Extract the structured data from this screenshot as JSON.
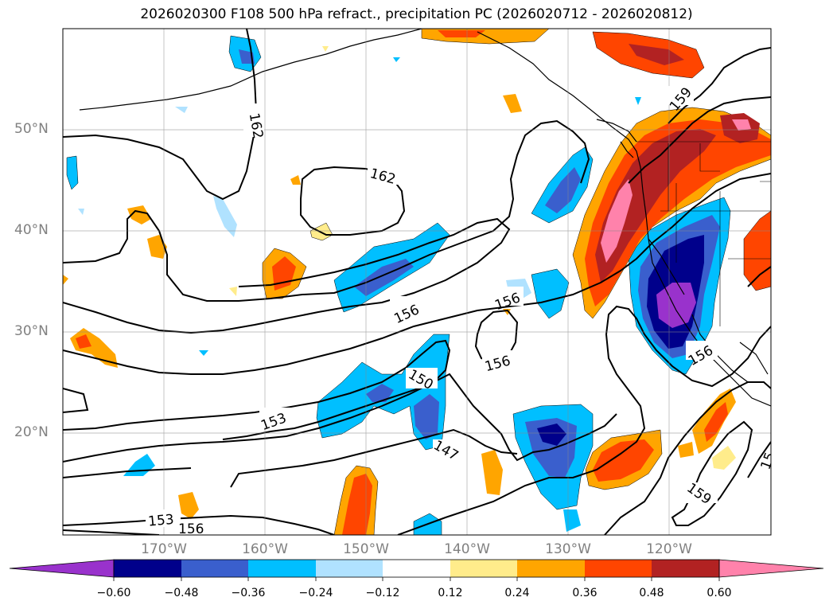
{
  "title": "2026020300 F108 500 hPa refract., precipitation PC (2026020712 - 2026020812)",
  "lat_labels": [
    "50°N",
    "40°N",
    "30°N",
    "20°N"
  ],
  "lon_labels": [
    "170°W",
    "160°W",
    "150°W",
    "140°W",
    "130°W",
    "120°W"
  ],
  "contour_labels": [
    "162",
    "162",
    "159",
    "156",
    "156",
    "156",
    "156",
    "150",
    "153",
    "147",
    "153",
    "156",
    "159",
    "15"
  ],
  "colorbar": {
    "labels": [
      "−0.60",
      "−0.48",
      "−0.36",
      "−0.24",
      "−0.12",
      "0.12",
      "0.24",
      "0.36",
      "0.48",
      "0.60"
    ],
    "colors": [
      "#9932cc",
      "#00008b",
      "#3a5fcd",
      "#00bfff",
      "#b0e2ff",
      "#ffffff",
      "#ffec8b",
      "#ffa500",
      "#ff4500",
      "#b22222",
      "#ff82ab"
    ]
  },
  "palette": {
    "neg_60": "#9932cc",
    "neg_48": "#00008b",
    "neg_36": "#3a5fcd",
    "neg_24": "#00bfff",
    "neg_12": "#b0e2ff",
    "pos_12": "#ffec8b",
    "pos_24": "#ffa500",
    "pos_36": "#ff4500",
    "pos_48": "#b22222",
    "pos_60": "#ff82ab"
  }
}
